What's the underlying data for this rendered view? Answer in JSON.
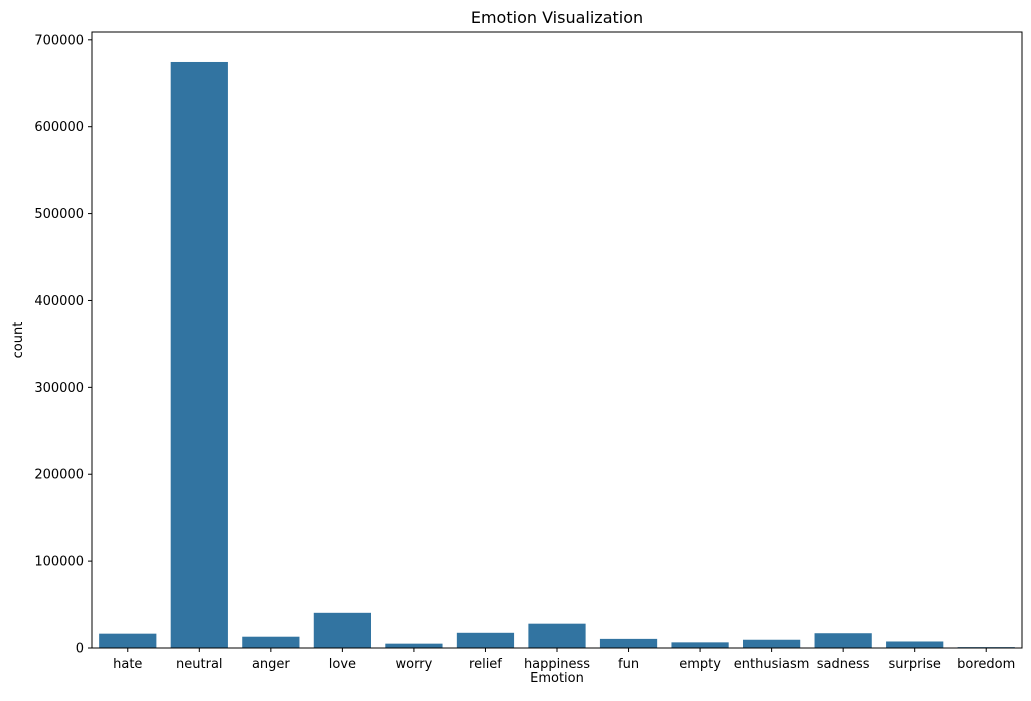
{
  "chart_data": {
    "type": "bar",
    "title": "Emotion Visualization",
    "xlabel": "Emotion",
    "ylabel": "count",
    "categories": [
      "hate",
      "neutral",
      "anger",
      "love",
      "worry",
      "relief",
      "happiness",
      "fun",
      "empty",
      "enthusiasm",
      "sadness",
      "surprise",
      "boredom"
    ],
    "values": [
      16500,
      674500,
      13000,
      40500,
      5000,
      17500,
      28000,
      10500,
      6500,
      9500,
      17000,
      7500,
      1000
    ],
    "yticks": [
      0,
      100000,
      200000,
      300000,
      400000,
      500000,
      600000,
      700000
    ],
    "ylim": [
      0,
      709000
    ],
    "bar_color": "#3274a1",
    "grid": false
  }
}
